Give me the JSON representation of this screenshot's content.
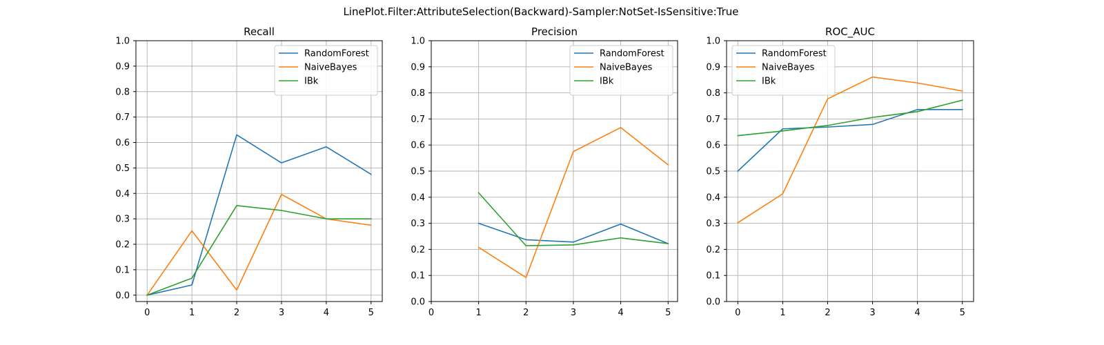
{
  "figure": {
    "title": "LinePlot.Filter:AttributeSelection(Backward)-Sampler:NotSet-IsSensitive:True"
  },
  "colors": {
    "RandomForest": "#1f77b4",
    "NaiveBayes": "#ff7f0e",
    "IBk": "#2ca02c"
  },
  "chart_data": [
    {
      "type": "line",
      "title": "Recall",
      "xlabel": "",
      "ylabel": "",
      "xlim": [
        -0.25,
        5.25
      ],
      "ylim": [
        -0.025,
        1.0
      ],
      "xticks": [
        "0",
        "1",
        "2",
        "3",
        "4",
        "5"
      ],
      "yticks": [
        "0.0",
        "0.1",
        "0.2",
        "0.3",
        "0.4",
        "0.5",
        "0.6",
        "0.7",
        "0.8",
        "0.9",
        "1.0"
      ],
      "grid": true,
      "legend": "upper right",
      "series": [
        {
          "name": "RandomForest",
          "x": [
            0,
            1,
            2,
            3,
            4,
            5
          ],
          "values": [
            0.0,
            0.04,
            0.63,
            0.52,
            0.583,
            0.475
          ]
        },
        {
          "name": "NaiveBayes",
          "x": [
            0,
            1,
            2,
            3,
            4,
            5
          ],
          "values": [
            0.0,
            0.253,
            0.02,
            0.396,
            0.3,
            0.275
          ]
        },
        {
          "name": "IBk",
          "x": [
            0,
            1,
            2,
            3,
            4,
            5
          ],
          "values": [
            0.0,
            0.067,
            0.352,
            0.333,
            0.3,
            0.3
          ]
        }
      ]
    },
    {
      "type": "line",
      "title": "Precision",
      "xlabel": "",
      "ylabel": "",
      "xlim": [
        -0.0,
        5.2
      ],
      "ylim": [
        0.0,
        1.0
      ],
      "xticks": [
        "0",
        "1",
        "2",
        "3",
        "4",
        "5"
      ],
      "yticks": [
        "0.0",
        "0.1",
        "0.2",
        "0.3",
        "0.4",
        "0.5",
        "0.6",
        "0.7",
        "0.8",
        "0.9",
        "1.0"
      ],
      "grid": true,
      "legend": "upper right",
      "series": [
        {
          "name": "RandomForest",
          "x": [
            1,
            2,
            3,
            4,
            5
          ],
          "values": [
            0.3,
            0.237,
            0.228,
            0.297,
            0.222
          ]
        },
        {
          "name": "NaiveBayes",
          "x": [
            1,
            2,
            3,
            4,
            5
          ],
          "values": [
            0.208,
            0.092,
            0.575,
            0.667,
            0.524
          ]
        },
        {
          "name": "IBk",
          "x": [
            1,
            2,
            3,
            4,
            5
          ],
          "values": [
            0.417,
            0.214,
            0.217,
            0.244,
            0.222
          ]
        }
      ]
    },
    {
      "type": "line",
      "title": "ROC_AUC",
      "xlabel": "",
      "ylabel": "",
      "xlim": [
        -0.25,
        5.25
      ],
      "ylim": [
        0.0,
        1.0
      ],
      "xticks": [
        "0",
        "1",
        "2",
        "3",
        "4",
        "5"
      ],
      "yticks": [
        "0.0",
        "0.1",
        "0.2",
        "0.3",
        "0.4",
        "0.5",
        "0.6",
        "0.7",
        "0.8",
        "0.9",
        "1.0"
      ],
      "grid": true,
      "legend": "upper left",
      "series": [
        {
          "name": "RandomForest",
          "x": [
            0,
            1,
            2,
            3,
            4,
            5
          ],
          "values": [
            0.5,
            0.662,
            0.669,
            0.679,
            0.736,
            0.736
          ]
        },
        {
          "name": "NaiveBayes",
          "x": [
            0,
            1,
            2,
            3,
            4,
            5
          ],
          "values": [
            0.302,
            0.413,
            0.777,
            0.861,
            0.838,
            0.807
          ]
        },
        {
          "name": "IBk",
          "x": [
            0,
            1,
            2,
            3,
            4,
            5
          ],
          "values": [
            0.636,
            0.654,
            0.675,
            0.706,
            0.728,
            0.772
          ]
        }
      ]
    }
  ]
}
